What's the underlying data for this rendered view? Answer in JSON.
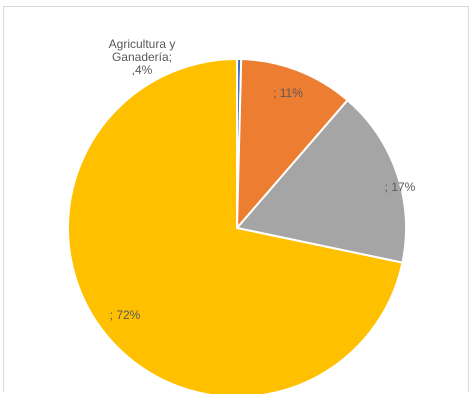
{
  "chart_data": {
    "type": "pie",
    "slices": [
      {
        "label": "Agricultura y Ganadería; ,4%",
        "label_lines": [
          "Agricultura y",
          "Ganadería;",
          ",4%"
        ],
        "value": 0.4,
        "color": "#4472C4"
      },
      {
        "label": "; 11%",
        "label_lines": [
          "; 11%"
        ],
        "value": 11,
        "color": "#ED7D31"
      },
      {
        "label": "; 17%",
        "label_lines": [
          "; 17%"
        ],
        "value": 17,
        "color": "#A5A5A5"
      },
      {
        "label": "; 72%",
        "label_lines": [
          "; 72%"
        ],
        "value": 72,
        "color": "#FFC000"
      }
    ],
    "start_angle_deg": 0,
    "direction": "clockwise",
    "legend": "none"
  }
}
